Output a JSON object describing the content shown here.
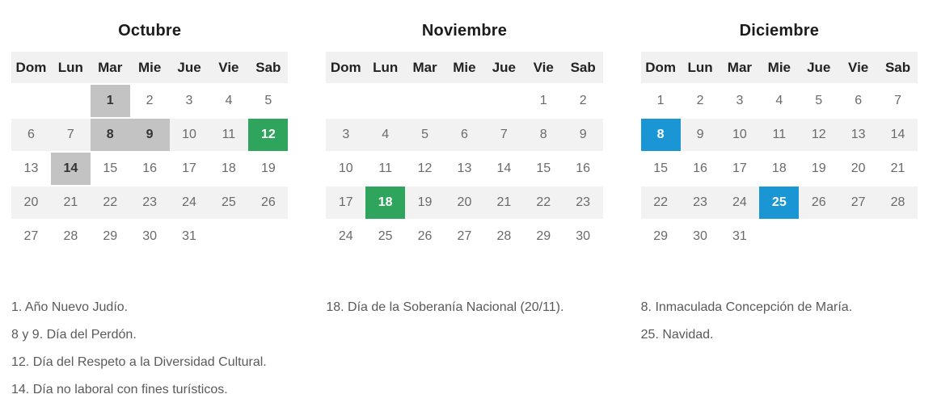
{
  "colors": {
    "page_bg": "#ffffff",
    "header_bg": "#f1f1f1",
    "stripe_bg": "#f2f2f2",
    "gray_highlight": "#c3c3c3",
    "green_highlight": "#2fa45c",
    "blue_highlight": "#1996d3"
  },
  "weekday_headers": [
    "Dom",
    "Lun",
    "Mar",
    "Mie",
    "Jue",
    "Vie",
    "Sab"
  ],
  "months": [
    {
      "title": "Octubre",
      "weeks": [
        [
          "",
          "",
          {
            "d": "1",
            "hl": "gray"
          },
          "2",
          "3",
          "4",
          "5"
        ],
        [
          "6",
          "7",
          {
            "d": "8",
            "hl": "gray"
          },
          {
            "d": "9",
            "hl": "gray"
          },
          "10",
          "11",
          {
            "d": "12",
            "hl": "green"
          }
        ],
        [
          "13",
          {
            "d": "14",
            "hl": "gray"
          },
          "15",
          "16",
          "17",
          "18",
          "19"
        ],
        [
          "20",
          "21",
          "22",
          "23",
          "24",
          "25",
          "26"
        ],
        [
          "27",
          "28",
          "29",
          "30",
          "31",
          "",
          ""
        ]
      ],
      "legend": [
        "1. Año Nuevo Judío.",
        "8 y 9. Día del Perdón.",
        "12. Día del Respeto a la Diversidad Cultural.",
        "14. Día no laboral con fines turísticos."
      ]
    },
    {
      "title": "Noviembre",
      "weeks": [
        [
          "",
          "",
          "",
          "",
          "",
          "1",
          "2"
        ],
        [
          "3",
          "4",
          "5",
          "6",
          "7",
          "8",
          "9"
        ],
        [
          "10",
          "11",
          "12",
          "13",
          "14",
          "15",
          "16"
        ],
        [
          "17",
          {
            "d": "18",
            "hl": "green"
          },
          "19",
          "20",
          "21",
          "22",
          "23"
        ],
        [
          "24",
          "25",
          "26",
          "27",
          "28",
          "29",
          "30"
        ]
      ],
      "legend": [
        "18. Día de la Soberanía Nacional (20/11)."
      ]
    },
    {
      "title": "Diciembre",
      "weeks": [
        [
          "1",
          "2",
          "3",
          "4",
          "5",
          "6",
          "7"
        ],
        [
          {
            "d": "8",
            "hl": "blue"
          },
          "9",
          "10",
          "11",
          "12",
          "13",
          "14"
        ],
        [
          "15",
          "16",
          "17",
          "18",
          "19",
          "20",
          "21"
        ],
        [
          "22",
          "23",
          "24",
          {
            "d": "25",
            "hl": "blue"
          },
          "26",
          "27",
          "28"
        ],
        [
          "29",
          "30",
          "31",
          "",
          "",
          "",
          ""
        ]
      ],
      "legend": [
        "8. Inmaculada Concepción de María.",
        "25. Navidad."
      ]
    }
  ]
}
